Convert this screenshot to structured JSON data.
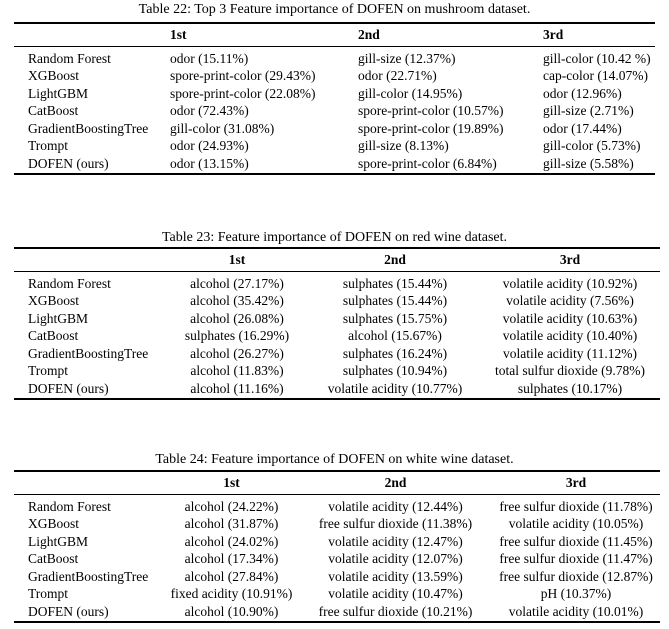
{
  "page": {
    "background_color": "#ffffff",
    "text_color": "#000000",
    "rule_color": "#000000"
  },
  "tables": [
    {
      "caption": "Table 22: Top 3 Feature importance of DOFEN on mushroom dataset.",
      "headers": [
        "1st",
        "2nd",
        "3rd"
      ],
      "rows": [
        {
          "model": "Random Forest",
          "first": "odor (15.11%)",
          "second": "gill-size (12.37%)",
          "third": "gill-color (10.42 %)"
        },
        {
          "model": "XGBoost",
          "first": "spore-print-color (29.43%)",
          "second": "odor (22.71%)",
          "third": "cap-color (14.07%)"
        },
        {
          "model": "LightGBM",
          "first": "spore-print-color (22.08%)",
          "second": "gill-color (14.95%)",
          "third": "odor (12.96%)"
        },
        {
          "model": "CatBoost",
          "first": "odor (72.43%)",
          "second": "spore-print-color (10.57%)",
          "third": "gill-size (2.71%)"
        },
        {
          "model": "GradientBoostingTree",
          "first": "gill-color (31.08%)",
          "second": "spore-print-color (19.89%)",
          "third": "odor (17.44%)"
        },
        {
          "model": "Trompt",
          "first": "odor (24.93%)",
          "second": "gill-size (8.13%)",
          "third": "gill-color (5.73%)"
        },
        {
          "model": "DOFEN (ours)",
          "first": "odor (13.15%)",
          "second": "spore-print-color (6.84%)",
          "third": "gill-size (5.58%)"
        }
      ]
    },
    {
      "caption": "Table 23: Feature importance of DOFEN on red wine dataset.",
      "headers": [
        "1st",
        "2nd",
        "3rd"
      ],
      "rows": [
        {
          "model": "Random Forest",
          "first": "alcohol (27.17%)",
          "second": "sulphates (15.44%)",
          "third": "volatile acidity (10.92%)"
        },
        {
          "model": "XGBoost",
          "first": "alcohol (35.42%)",
          "second": "sulphates (15.44%)",
          "third": "volatile acidity (7.56%)"
        },
        {
          "model": "LightGBM",
          "first": "alcohol (26.08%)",
          "second": "sulphates (15.75%)",
          "third": "volatile acidity (10.63%)"
        },
        {
          "model": "CatBoost",
          "first": "sulphates (16.29%)",
          "second": "alcohol (15.67%)",
          "third": "volatile acidity (10.40%)"
        },
        {
          "model": "GradientBoostingTree",
          "first": "alcohol (26.27%)",
          "second": "sulphates (16.24%)",
          "third": "volatile acidity (11.12%)"
        },
        {
          "model": "Trompt",
          "first": "alcohol (11.83%)",
          "second": "sulphates (10.94%)",
          "third": "total sulfur dioxide (9.78%)"
        },
        {
          "model": "DOFEN (ours)",
          "first": "alcohol (11.16%)",
          "second": "volatile acidity (10.77%)",
          "third": "sulphates (10.17%)"
        }
      ]
    },
    {
      "caption": "Table 24: Feature importance of DOFEN on white wine dataset.",
      "headers": [
        "1st",
        "2nd",
        "3rd"
      ],
      "rows": [
        {
          "model": "Random Forest",
          "first": "alcohol (24.22%)",
          "second": "volatile acidity (12.44%)",
          "third": "free sulfur dioxide (11.78%)"
        },
        {
          "model": "XGBoost",
          "first": "alcohol (31.87%)",
          "second": "free sulfur dioxide (11.38%)",
          "third": "volatile acidity (10.05%)"
        },
        {
          "model": "LightGBM",
          "first": "alcohol (24.02%)",
          "second": "volatile acidity (12.47%)",
          "third": "free sulfur dioxide (11.45%)"
        },
        {
          "model": "CatBoost",
          "first": "alcohol (17.34%)",
          "second": "volatile acidity (12.07%)",
          "third": "free sulfur dioxide (11.47%)"
        },
        {
          "model": "GradientBoostingTree",
          "first": "alcohol (27.84%)",
          "second": "volatile acidity (13.59%)",
          "third": "free sulfur dioxide (12.87%)"
        },
        {
          "model": "Trompt",
          "first": "fixed acidity (10.91%)",
          "second": "volatile acidity (10.47%)",
          "third": "pH (10.37%)"
        },
        {
          "model": "DOFEN (ours)",
          "first": "alcohol (10.90%)",
          "second": "free sulfur dioxide (10.21%)",
          "third": "volatile acidity (10.01%)"
        }
      ]
    }
  ]
}
